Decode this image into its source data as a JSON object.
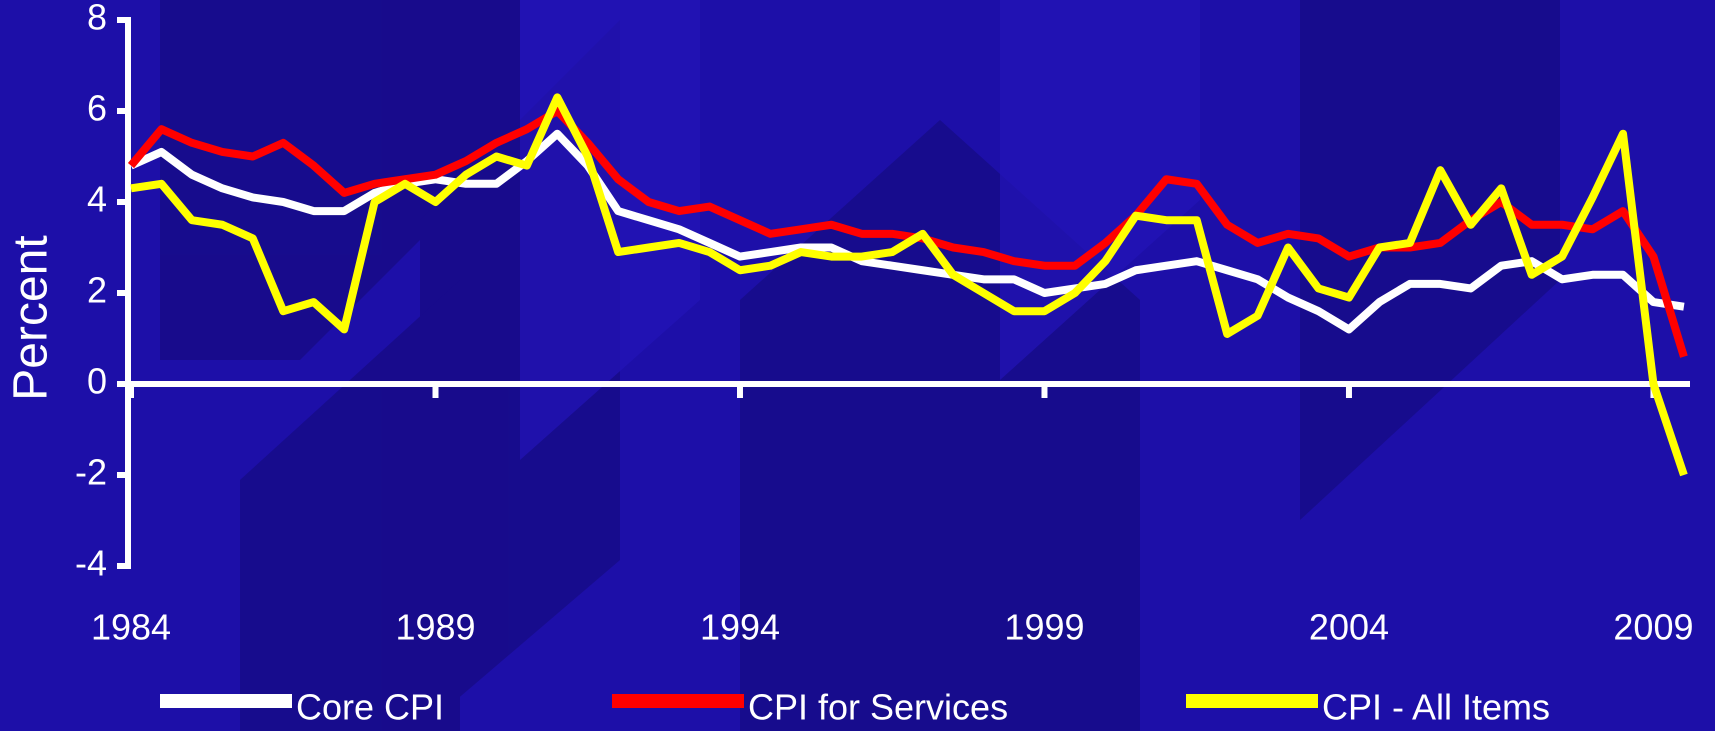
{
  "chart_data": {
    "type": "line",
    "y_label": "Percent",
    "x": [
      1984,
      1984.5,
      1985,
      1985.5,
      1986,
      1986.5,
      1987,
      1987.5,
      1988,
      1988.5,
      1989,
      1989.5,
      1990,
      1990.5,
      1991,
      1991.5,
      1992,
      1992.5,
      1993,
      1993.5,
      1994,
      1994.5,
      1995,
      1995.5,
      1996,
      1996.5,
      1997,
      1997.5,
      1998,
      1998.5,
      1999,
      1999.5,
      2000,
      2000.5,
      2001,
      2001.5,
      2002,
      2002.5,
      2003,
      2003.5,
      2004,
      2004.5,
      2005,
      2005.5,
      2006,
      2006.5,
      2007,
      2007.5,
      2008,
      2008.5,
      2009,
      2009.5
    ],
    "series": [
      {
        "name": "Core CPI",
        "color": "#ffffff",
        "values": [
          4.8,
          5.1,
          4.6,
          4.3,
          4.1,
          4.0,
          3.8,
          3.8,
          4.2,
          4.4,
          4.5,
          4.4,
          4.4,
          4.9,
          5.5,
          4.8,
          3.8,
          3.6,
          3.4,
          3.1,
          2.8,
          2.9,
          3.0,
          3.0,
          2.7,
          2.6,
          2.5,
          2.4,
          2.3,
          2.3,
          2.0,
          2.1,
          2.2,
          2.5,
          2.6,
          2.7,
          2.5,
          2.3,
          1.9,
          1.6,
          1.2,
          1.8,
          2.2,
          2.2,
          2.1,
          2.6,
          2.7,
          2.3,
          2.4,
          2.4,
          1.8,
          1.7
        ]
      },
      {
        "name": "CPI for Services",
        "color": "#ff0000",
        "values": [
          4.8,
          5.6,
          5.3,
          5.1,
          5.0,
          5.3,
          4.8,
          4.2,
          4.4,
          4.5,
          4.6,
          4.9,
          5.3,
          5.6,
          6.0,
          5.3,
          4.5,
          4.0,
          3.8,
          3.9,
          3.6,
          3.3,
          3.4,
          3.5,
          3.3,
          3.3,
          3.2,
          3.0,
          2.9,
          2.7,
          2.6,
          2.6,
          3.1,
          3.7,
          4.5,
          4.4,
          3.5,
          3.1,
          3.3,
          3.2,
          2.8,
          3.0,
          3.0,
          3.1,
          3.6,
          4.0,
          3.5,
          3.5,
          3.4,
          3.8,
          2.8,
          0.6
        ]
      },
      {
        "name": "CPI - All Items",
        "color": "#ffff00",
        "values": [
          4.3,
          4.4,
          3.6,
          3.5,
          3.2,
          1.6,
          1.8,
          1.2,
          4.0,
          4.4,
          4.0,
          4.6,
          5.0,
          4.8,
          6.3,
          5.0,
          2.9,
          3.0,
          3.1,
          2.9,
          2.5,
          2.6,
          2.9,
          2.8,
          2.8,
          2.9,
          3.3,
          2.4,
          2.0,
          1.6,
          1.6,
          2.0,
          2.7,
          3.7,
          3.6,
          3.6,
          1.1,
          1.5,
          3.0,
          2.1,
          1.9,
          3.0,
          3.1,
          4.7,
          3.5,
          4.3,
          2.4,
          2.8,
          4.1,
          5.5,
          0.0,
          -2.0
        ]
      }
    ],
    "xlim": [
      1984,
      2009.6
    ],
    "xticks": [
      1984,
      1989,
      1994,
      1999,
      2004,
      2009
    ],
    "ylim": [
      -4,
      8
    ],
    "yticks": [
      -4,
      -2,
      0,
      2,
      4,
      6,
      8
    ],
    "legend": "bottom"
  }
}
